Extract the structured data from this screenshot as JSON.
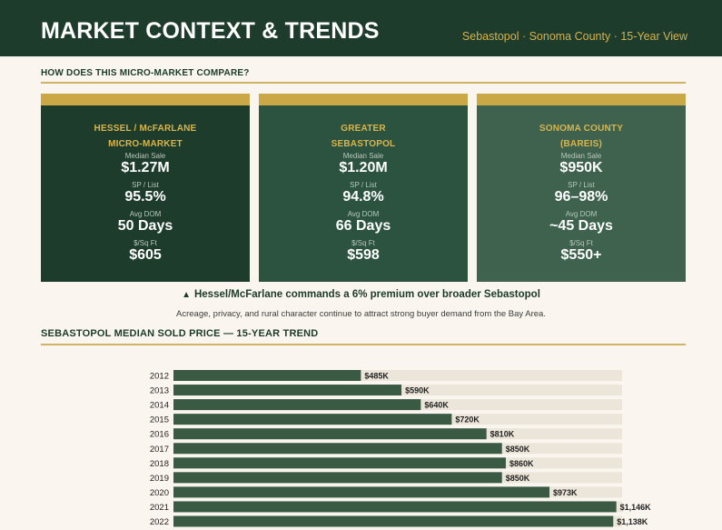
{
  "header": {
    "title": "MARKET CONTEXT & TRENDS",
    "subtitle": "Sebastopol · Sonoma County · 15-Year View"
  },
  "compare": {
    "heading": "HOW DOES THIS MICRO-MARKET COMPARE?",
    "cards": [
      {
        "name_line1": "HESSEL / McFARLANE",
        "name_line2": "MICRO-MARKET",
        "metrics": [
          {
            "label": "Median Sale",
            "value": "$1.27M"
          },
          {
            "label": "SP / List",
            "value": "95.5%"
          },
          {
            "label": "Avg DOM",
            "value": "50 Days"
          },
          {
            "label": "$/Sq Ft",
            "value": "$605"
          }
        ]
      },
      {
        "name_line1": "GREATER",
        "name_line2": "SEBASTOPOL",
        "metrics": [
          {
            "label": "Median Sale",
            "value": "$1.20M"
          },
          {
            "label": "SP / List",
            "value": "94.8%"
          },
          {
            "label": "Avg DOM",
            "value": "66 Days"
          },
          {
            "label": "$/Sq Ft",
            "value": "$598"
          }
        ]
      },
      {
        "name_line1": "SONOMA COUNTY",
        "name_line2": "(BAREIS)",
        "metrics": [
          {
            "label": "Median Sale",
            "value": "$950K"
          },
          {
            "label": "SP / List",
            "value": "96–98%"
          },
          {
            "label": "Avg DOM",
            "value": "~45 Days"
          },
          {
            "label": "$/Sq Ft",
            "value": "$550+"
          }
        ]
      }
    ],
    "premium_text": "Hessel/McFarlane commands a 6% premium over broader Sebastopol",
    "premium_note": "Acreage, privacy, and rural character continue to attract strong buyer demand from the Bay Area."
  },
  "colors": {
    "bar": "#3a5a43",
    "track": "#ece6da",
    "accent": "#c9a845"
  },
  "chart_data": {
    "type": "bar",
    "orientation": "horizontal",
    "title": "SEBASTOPOL MEDIAN SOLD PRICE — 15-YEAR TREND",
    "categories": [
      "2012",
      "2013",
      "2014",
      "2015",
      "2016",
      "2017",
      "2018",
      "2019",
      "2020",
      "2021",
      "2022"
    ],
    "values": [
      485,
      590,
      640,
      720,
      810,
      850,
      860,
      850,
      973,
      1146,
      1138
    ],
    "value_labels": [
      "$485K",
      "$590K",
      "$640K",
      "$720K",
      "$810K",
      "$850K",
      "$860K",
      "$850K",
      "$973K",
      "$1,146K",
      "$1,138K"
    ],
    "units": "$K",
    "xlim": [
      0,
      1175
    ]
  }
}
